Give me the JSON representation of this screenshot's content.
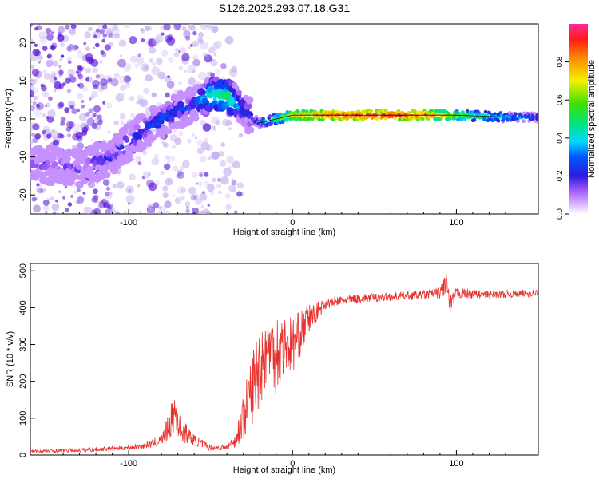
{
  "title": "S126.2025.293.07.18.G31",
  "colors": {
    "axis": "#000000",
    "snr_line": "#e8302c",
    "spectral_dim": "#c9b4f0",
    "spectral_core": "#5a14d8"
  },
  "chart_data": [
    {
      "type": "heatmap",
      "title": "S126.2025.293.07.18.G31",
      "xlabel": "Height of straight line (km)",
      "ylabel": "Frequency (Hz)",
      "xlim": [
        -160,
        150
      ],
      "ylim": [
        -25,
        25
      ],
      "xticks": [
        -100,
        0,
        100
      ],
      "yticks": [
        -20,
        -10,
        0,
        10,
        20
      ],
      "colorbar": {
        "label": "Normalized spectral amplitude",
        "range": [
          0,
          1
        ],
        "ticks": [
          0.0,
          0.2,
          0.4,
          0.6,
          0.8
        ]
      },
      "ridge": {
        "x": [
          -150,
          -130,
          -110,
          -100,
          -90,
          -80,
          -70,
          -60,
          -50,
          -40,
          -33,
          -28,
          -25,
          -20,
          -10,
          0,
          20,
          50,
          80,
          100,
          130,
          150
        ],
        "freq_hz": [
          -12,
          -13,
          -10,
          -6,
          -3,
          0,
          2,
          4,
          6,
          6,
          4,
          2,
          0,
          -1,
          0,
          1,
          1,
          1,
          1,
          1,
          0.5,
          0.5
        ],
        "amplitude": [
          0.2,
          0.2,
          0.25,
          0.3,
          0.3,
          0.35,
          0.3,
          0.3,
          0.5,
          0.55,
          0.4,
          0.3,
          0.3,
          0.4,
          0.6,
          0.8,
          0.95,
          1.0,
          0.95,
          0.7,
          0.45,
          0.35
        ]
      }
    },
    {
      "type": "line",
      "xlabel": "Height of straight line (km)",
      "ylabel": "SNR (10 * v/v)",
      "xlim": [
        -160,
        150
      ],
      "ylim": [
        0,
        520
      ],
      "xticks": [
        -100,
        0,
        100
      ],
      "yticks": [
        0,
        100,
        200,
        300,
        400,
        500
      ],
      "series": [
        {
          "name": "SNR",
          "x": [
            -160,
            -140,
            -120,
            -100,
            -90,
            -80,
            -75,
            -72,
            -68,
            -60,
            -50,
            -40,
            -35,
            -30,
            -25,
            -20,
            -15,
            -10,
            -5,
            0,
            5,
            10,
            15,
            20,
            30,
            40,
            60,
            80,
            90,
            94,
            96,
            100,
            120,
            150
          ],
          "values": [
            10,
            12,
            15,
            20,
            25,
            40,
            80,
            120,
            70,
            40,
            20,
            20,
            40,
            100,
            180,
            240,
            300,
            280,
            300,
            300,
            330,
            370,
            390,
            410,
            420,
            425,
            430,
            435,
            440,
            470,
            400,
            440,
            435,
            440
          ],
          "noise": [
            5,
            5,
            6,
            6,
            8,
            15,
            40,
            60,
            35,
            15,
            8,
            8,
            20,
            60,
            100,
            120,
            90,
            120,
            80,
            80,
            60,
            40,
            25,
            15,
            12,
            12,
            12,
            12,
            15,
            40,
            30,
            15,
            10,
            10
          ]
        }
      ]
    }
  ]
}
